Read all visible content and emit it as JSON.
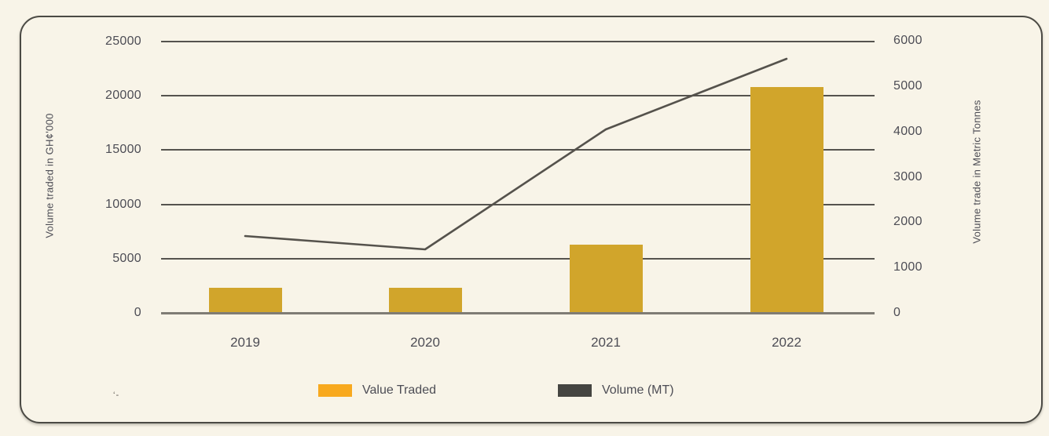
{
  "page": {
    "background": "#F8F4E8",
    "card_border_color": "#4B4A44",
    "text_color": "#4D4D55",
    "stray_mark": "‘-"
  },
  "chart_data": {
    "type": "bar",
    "subtype": "combo-bar-line-dual-axis",
    "categories": [
      "2019",
      "2020",
      "2021",
      "2022"
    ],
    "series": [
      {
        "name": "Value Traded",
        "type": "bar",
        "axis": "left",
        "color": "#D1A52B",
        "legend_color": "#F8A91E",
        "values": [
          2300,
          2300,
          6300,
          20800
        ]
      },
      {
        "name": "Volume (MT)",
        "type": "line",
        "axis": "right",
        "color": "#55524C",
        "legend_color": "#454541",
        "values": [
          1700,
          1400,
          4050,
          5600
        ]
      }
    ],
    "left_axis": {
      "title": "Volume traded in GH¢'000",
      "min": 0,
      "max": 25000,
      "ticks": [
        0,
        5000,
        10000,
        15000,
        20000,
        25000
      ]
    },
    "right_axis": {
      "title": "Volume trade in Metric Tonnes",
      "min": 0,
      "max": 6000,
      "ticks": [
        0,
        1000,
        2000,
        3000,
        4000,
        5000,
        6000
      ]
    },
    "grid": "horizontal",
    "gridline_color": "#55534E",
    "legend_position": "bottom"
  }
}
